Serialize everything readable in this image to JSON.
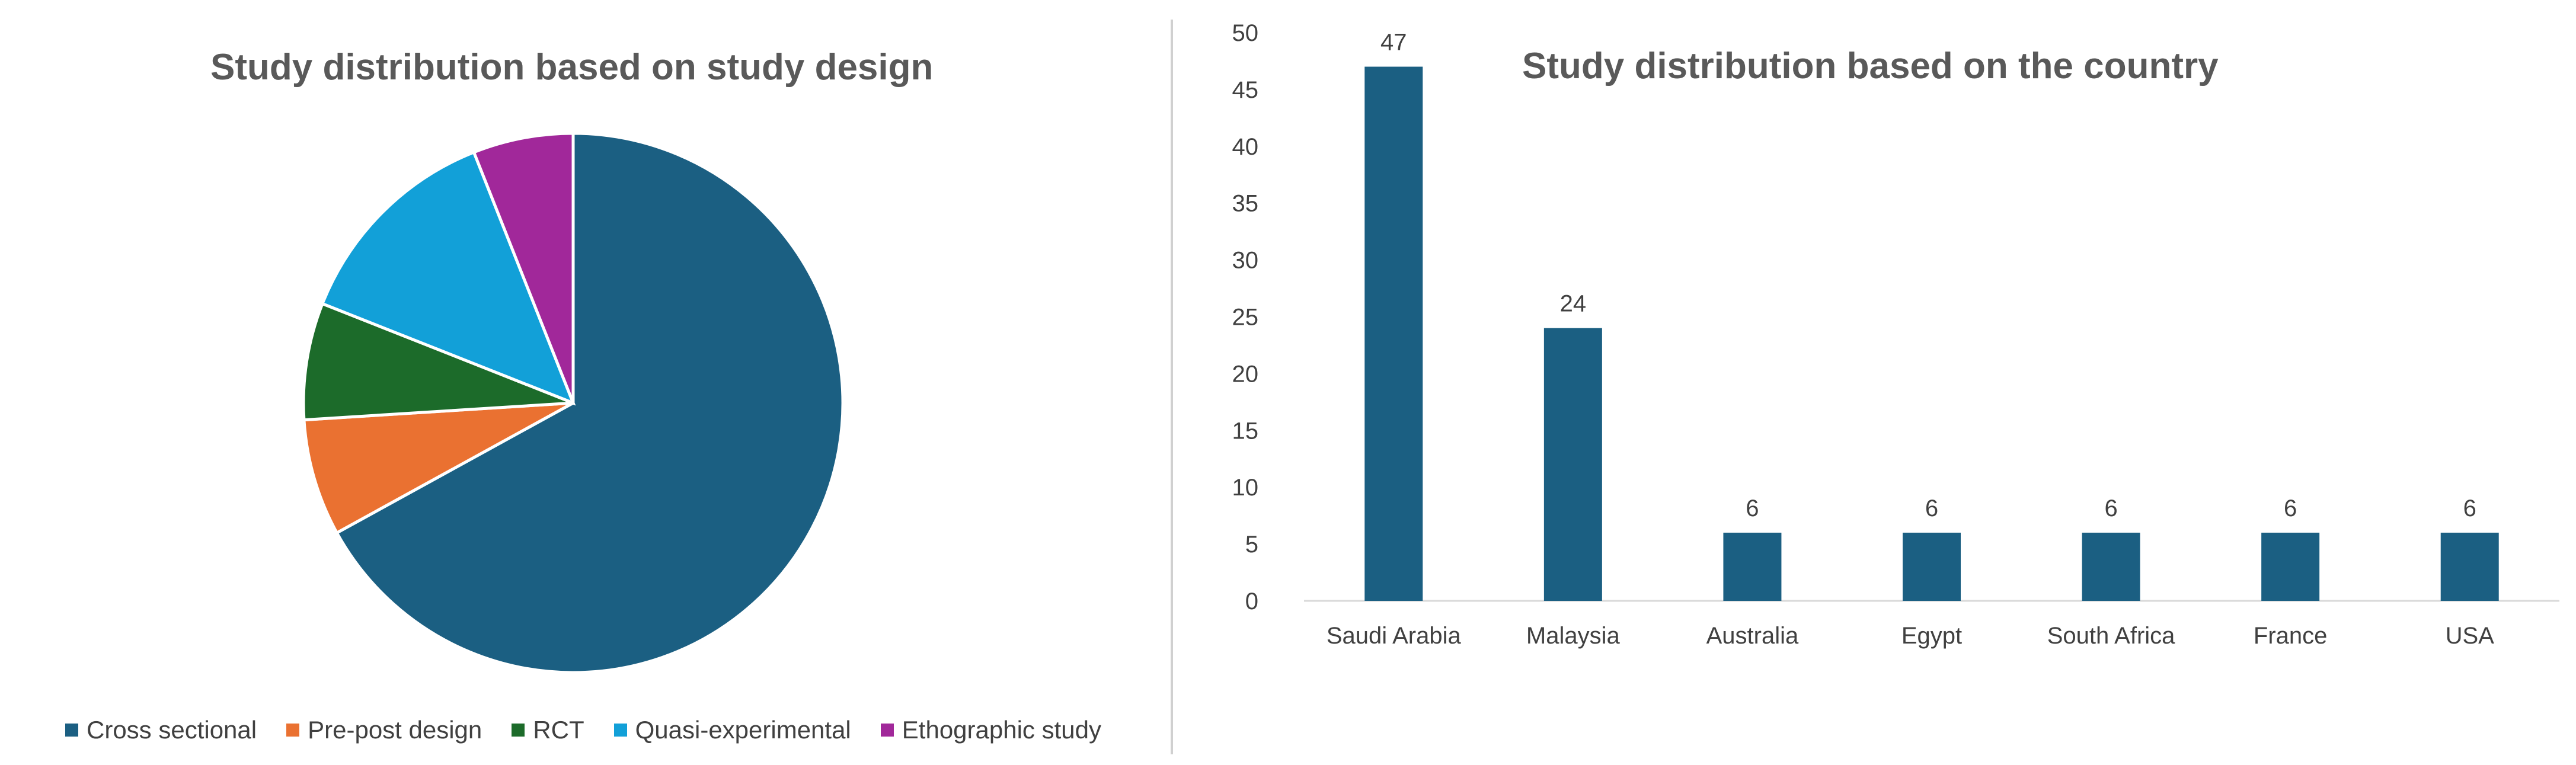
{
  "chart_data": [
    {
      "type": "pie",
      "title": "Study distribution based on study design",
      "categories": [
        "Cross sectional",
        "Pre-post design",
        "RCT",
        "Quasi-experimental",
        "Ethographic study"
      ],
      "values": [
        67,
        7,
        7,
        13,
        6
      ],
      "colors": [
        "#1b5f82",
        "#ea7131",
        "#1c6b2a",
        "#12a0d8",
        "#a1289a"
      ],
      "legend_position": "bottom"
    },
    {
      "type": "bar",
      "title": "Study distribution based on the country",
      "categories": [
        "Saudi Arabia",
        "Malaysia",
        "Australia",
        "Egypt",
        "South Africa",
        "France",
        "USA"
      ],
      "values": [
        47,
        24,
        6,
        6,
        6,
        6,
        6
      ],
      "data_labels": [
        "47",
        "24",
        "6",
        "6",
        "6",
        "6",
        "6"
      ],
      "yticks": [
        "0",
        "5",
        "10",
        "15",
        "20",
        "25",
        "30",
        "35",
        "40",
        "45",
        "50"
      ],
      "ylim": [
        0,
        50
      ],
      "bar_color": "#1b5f82",
      "grid": false
    }
  ]
}
